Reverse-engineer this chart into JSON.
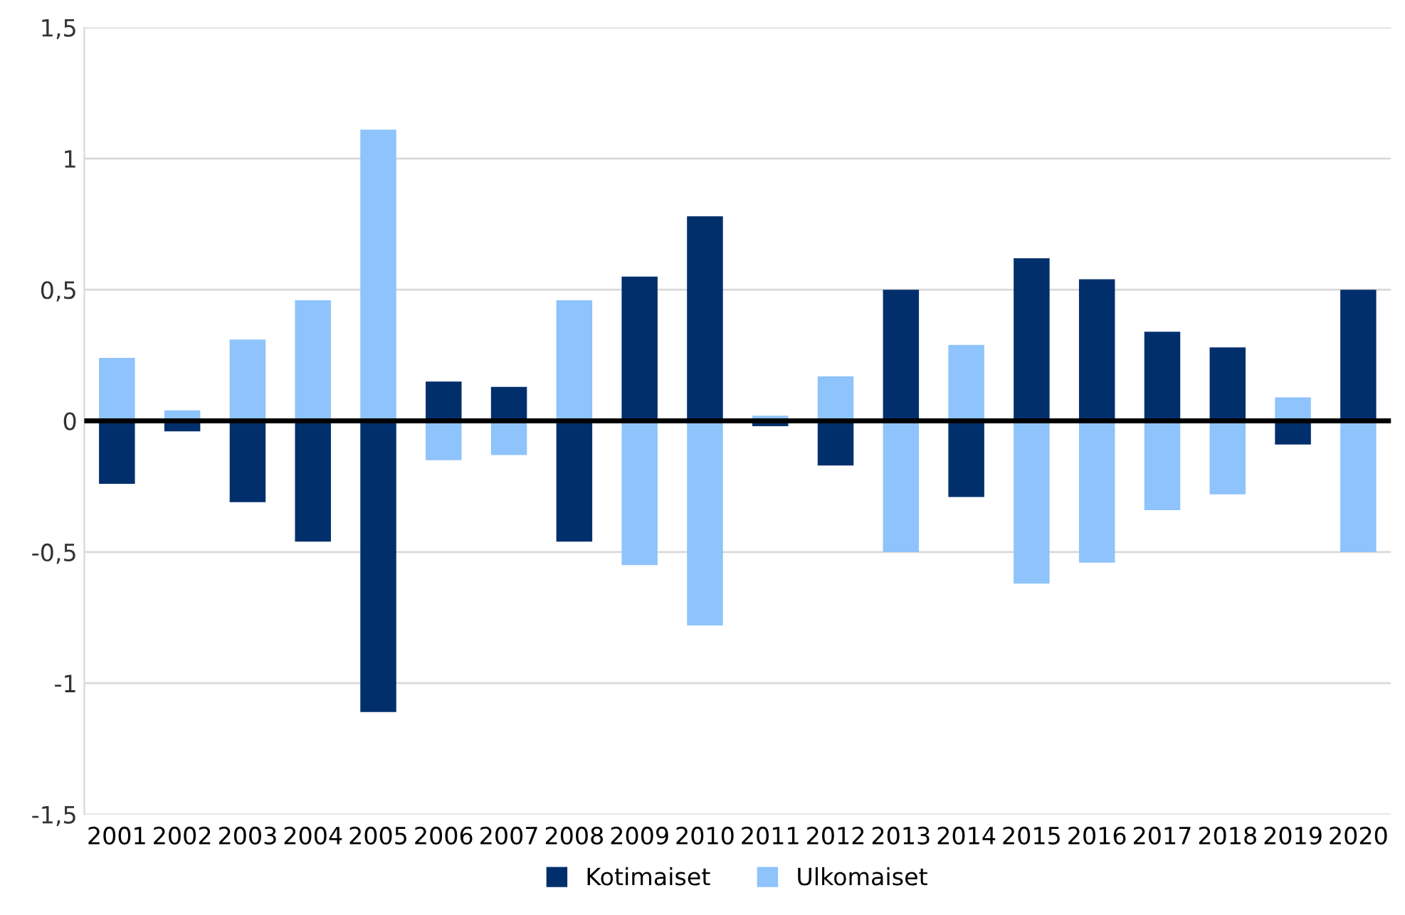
{
  "chart_data": {
    "type": "bar",
    "stacked": true,
    "categories": [
      "2001",
      "2002",
      "2003",
      "2004",
      "2005",
      "2006",
      "2007",
      "2008",
      "2009",
      "2010",
      "2011",
      "2012",
      "2013",
      "2014",
      "2015",
      "2016",
      "2017",
      "2018",
      "2019",
      "2020"
    ],
    "series": [
      {
        "name": "Kotimaiset",
        "color": "#002f6c",
        "values": [
          -0.24,
          -0.04,
          -0.31,
          -0.46,
          -1.11,
          0.15,
          0.13,
          -0.46,
          0.55,
          0.78,
          -0.02,
          -0.17,
          0.5,
          -0.29,
          0.62,
          0.54,
          0.34,
          0.28,
          -0.09,
          0.5
        ]
      },
      {
        "name": "Ulkomaiset",
        "color": "#8ec3fb",
        "values": [
          0.24,
          0.04,
          0.31,
          0.46,
          1.11,
          -0.15,
          -0.13,
          0.46,
          -0.55,
          -0.78,
          0.02,
          0.17,
          -0.5,
          0.29,
          -0.62,
          -0.54,
          -0.34,
          -0.28,
          0.09,
          -0.5
        ]
      }
    ],
    "ylim": [
      -1.5,
      1.5
    ],
    "yticks": [
      {
        "value": -1.5,
        "label": "-1,5"
      },
      {
        "value": -1,
        "label": "-1"
      },
      {
        "value": -0.5,
        "label": "-0,5"
      },
      0,
      {
        "value": 0.5,
        "label": "0,5"
      },
      1,
      {
        "value": 1.5,
        "label": "1,5"
      }
    ],
    "grid": "y",
    "legend": "bottom"
  }
}
